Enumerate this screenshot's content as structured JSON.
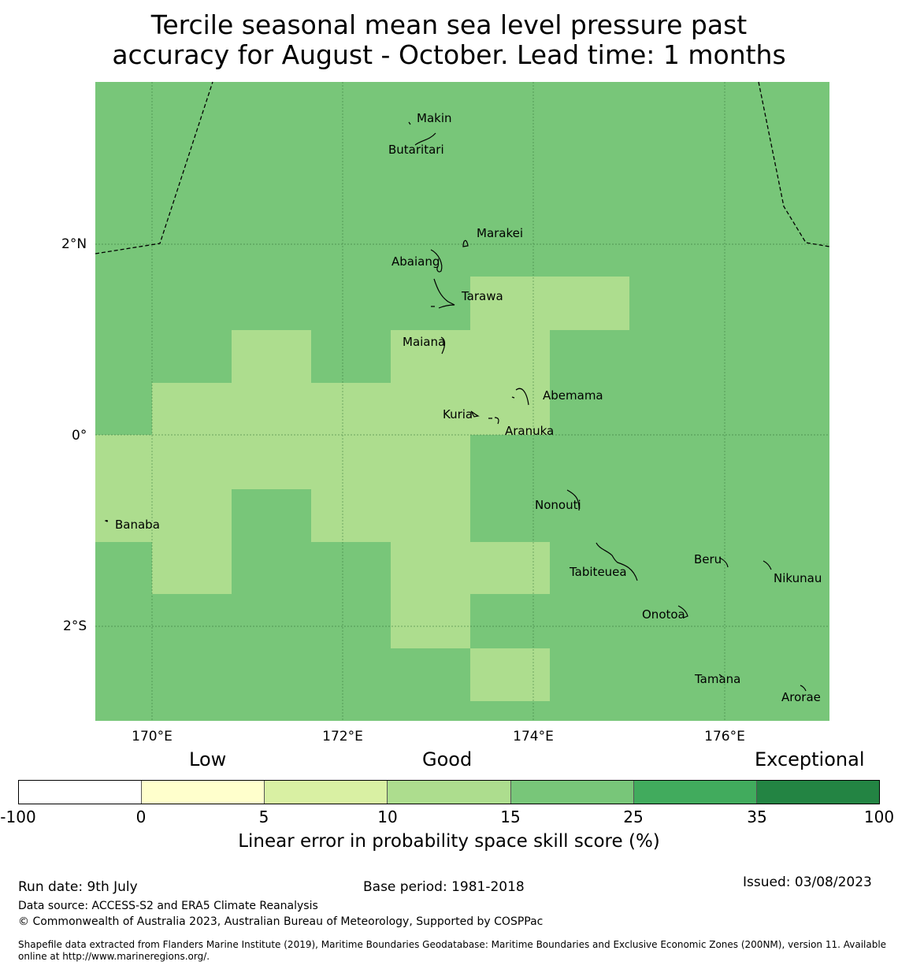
{
  "title_line1": "Tercile seasonal mean sea level pressure past",
  "title_line2": "accuracy for August - October. Lead time: 1 months",
  "map": {
    "lon_labels": [
      "170°E",
      "172°E",
      "174°E",
      "176°E"
    ],
    "lat_labels": [
      "2°N",
      "0°",
      "2°S"
    ],
    "islands": [
      "Makin",
      "Butaritari",
      "Marakei",
      "Abaiang",
      "Tarawa",
      "Maiana",
      "Abemama",
      "Kuria",
      "Aranuka",
      "Banaba",
      "Nonouti",
      "Beru",
      "Tabiteuea",
      "Nikunau",
      "Onotoa",
      "Tamana",
      "Arorae"
    ],
    "cell_colors": {
      "good_15_25": "#78c679",
      "good_10_15": "#addd8e"
    }
  },
  "colorbar": {
    "categories": [
      "Low",
      "Good",
      "Exceptional"
    ],
    "ticks": [
      "-100",
      "0",
      "5",
      "10",
      "15",
      "25",
      "35",
      "100"
    ],
    "colors": [
      "#ffffff",
      "#ffffcc",
      "#d9f0a3",
      "#addd8e",
      "#78c679",
      "#41ab5d",
      "#238443"
    ],
    "label": "Linear error in probability space skill score (%)"
  },
  "footer": {
    "run_date": "Run date: 9th July",
    "base_period": "Base period: 1981-2018",
    "issued": "Issued: 03/08/2023",
    "data_source": "Data source: ACCESS-S2 and ERA5 Climate Reanalysis",
    "copyright": "© Commonwealth of Australia 2023, Australian Bureau of Meteorology, Supported by COSPPac",
    "shapefile": "Shapefile data extracted from Flanders Marine Institute (2019), Maritime Boundaries Geodatabase: Maritime Boundaries and Exclusive Economic Zones (200NM), version 11. Available online at http://www.marineregions.org/."
  }
}
